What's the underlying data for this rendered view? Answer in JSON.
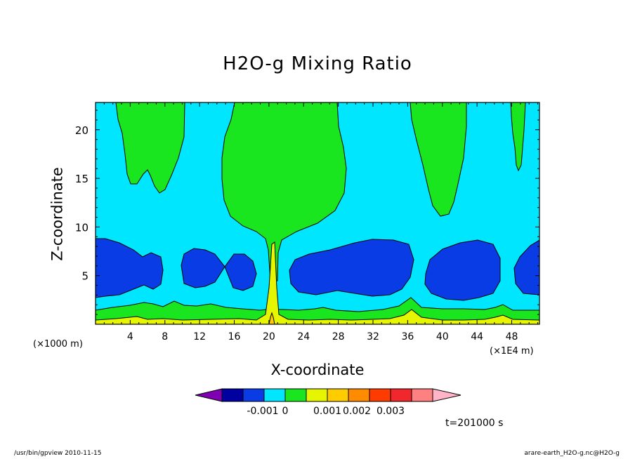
{
  "app": {
    "footer_left": "/usr/bin/gpview  2010-11-15",
    "footer_right": "arare-earth_H2O-g.nc@H2O-g"
  },
  "chart_data": {
    "type": "heatmap",
    "title": "H2O-g Mixing Ratio",
    "xlabel": "X-coordinate",
    "ylabel": "Z-coordinate",
    "x_unit_left": "(×1000 m)",
    "x_unit_right": "(×1E4 m)",
    "time_label": "t=201000 s",
    "xlim": [
      0,
      51.2
    ],
    "ylim": [
      0,
      22.8
    ],
    "x_ticks": [
      4,
      8,
      12,
      16,
      20,
      24,
      28,
      32,
      36,
      40,
      44,
      48
    ],
    "y_ticks": [
      5,
      10,
      15,
      20
    ],
    "x_tick_labels": [
      "4",
      "8",
      "12",
      "16",
      "20",
      "24",
      "28",
      "32",
      "36",
      "40",
      "44",
      "48"
    ],
    "y_tick_labels": [
      "5",
      "10",
      "15",
      "20"
    ],
    "grid": false,
    "colorbar": {
      "colors": [
        "#7F00B2",
        "#0000A0",
        "#0A3CE6",
        "#00E6FF",
        "#19E61E",
        "#E6F500",
        "#FFCC00",
        "#FF8C00",
        "#FF3C00",
        "#F0282D",
        "#FF8080",
        "#FFB4C8"
      ],
      "tick_labels": [
        "-0.001",
        "0",
        "0.001",
        "0.002",
        "0.003"
      ]
    },
    "regions": [
      {
        "level": "background",
        "color": "#00E6FF"
      },
      {
        "level": "green_plumes_upper",
        "color": "#19E61E",
        "x_centers": [
          7,
          20.5,
          38,
          48.3
        ]
      },
      {
        "level": "blue_cells_mid",
        "color": "#0A3CE6",
        "x_centers": [
          4.5,
          11.5,
          16,
          30,
          43,
          49.5
        ]
      },
      {
        "level": "green_band_low",
        "color": "#19E61E"
      },
      {
        "level": "yellow_surface",
        "color": "#E6F500"
      }
    ]
  }
}
